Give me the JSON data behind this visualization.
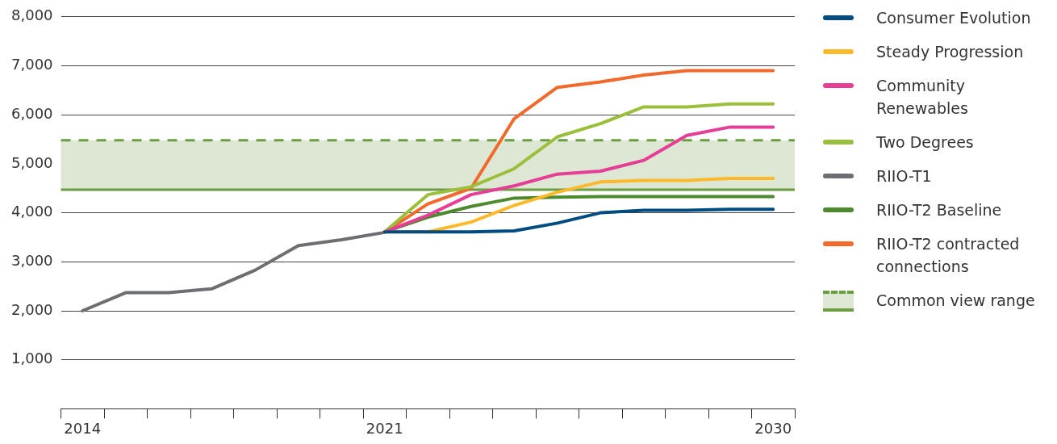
{
  "chart_data": {
    "type": "line",
    "categories": [
      "2014",
      null,
      null,
      null,
      null,
      null,
      null,
      "2021",
      null,
      null,
      null,
      null,
      null,
      null,
      null,
      null,
      "2030"
    ],
    "series": [
      {
        "name": "Consumer Evolution",
        "color": "#004b80",
        "values": [
          null,
          null,
          null,
          null,
          null,
          null,
          null,
          3610,
          3610,
          3610,
          3630,
          3790,
          4000,
          4050,
          4050,
          4070,
          4070
        ]
      },
      {
        "name": "Steady Progression",
        "color": "#fdb92a",
        "values": [
          null,
          null,
          null,
          null,
          null,
          null,
          null,
          3610,
          3610,
          3810,
          4150,
          4420,
          4630,
          4660,
          4660,
          4700,
          4700
        ]
      },
      {
        "name": "Community Renewables",
        "color": "#e63e96",
        "values": [
          null,
          null,
          null,
          null,
          null,
          null,
          null,
          3610,
          3950,
          4370,
          4550,
          4790,
          4850,
          5070,
          5580,
          5750,
          5750
        ]
      },
      {
        "name": "Two Degrees",
        "color": "#9bbf3a",
        "values": [
          null,
          null,
          null,
          null,
          null,
          null,
          null,
          3610,
          4370,
          4530,
          4900,
          5550,
          5820,
          6160,
          6160,
          6220,
          6220
        ]
      },
      {
        "name": "RIIO-T1",
        "color": "#6d6e71",
        "values": [
          2000,
          2370,
          2370,
          2450,
          2830,
          3330,
          3450,
          3600,
          null,
          null,
          null,
          null,
          null,
          null,
          null,
          null,
          null
        ]
      },
      {
        "name": "RIIO-T2 Baseline",
        "color": "#4d8a2e",
        "values": [
          null,
          null,
          null,
          null,
          null,
          null,
          null,
          3610,
          3910,
          4130,
          4300,
          4320,
          4330,
          4330,
          4330,
          4330,
          4330
        ]
      },
      {
        "name": "RIIO-T2 contracted connections",
        "color": "#f26a2b",
        "values": [
          null,
          null,
          null,
          null,
          null,
          null,
          null,
          3610,
          4180,
          4500,
          5920,
          6560,
          6670,
          6810,
          6900,
          6900,
          6900
        ]
      }
    ],
    "bands": [
      {
        "axis": "y",
        "from": 4470,
        "to": 5480,
        "label": "Common view range",
        "color": "#dde7d3"
      }
    ],
    "ylim": [
      0,
      8000
    ],
    "yticks": [
      {
        "value": 1000,
        "label": "1,000"
      },
      {
        "value": 2000,
        "label": "2,000"
      },
      {
        "value": 3000,
        "label": "3,000"
      },
      {
        "value": 4000,
        "label": "4,000"
      },
      {
        "value": 5000,
        "label": "5,000"
      },
      {
        "value": 6000,
        "label": "6,000"
      },
      {
        "value": 7000,
        "label": "7,000"
      },
      {
        "value": 8000,
        "label": "8,000"
      }
    ],
    "ref_lines": [
      {
        "axis": "y",
        "value": 4470,
        "color": "#6b9e43",
        "line_style": "solid"
      },
      {
        "axis": "y",
        "value": 5480,
        "color": "#6b9e43",
        "line_style": "dashed"
      }
    ],
    "grid": "y",
    "legend": "right",
    "marker": "none",
    "line_style": "solid"
  }
}
